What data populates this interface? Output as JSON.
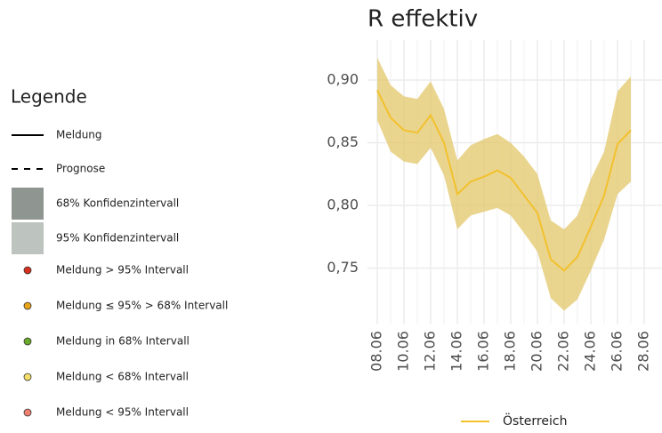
{
  "chart_data": {
    "type": "line",
    "title": "R effektiv",
    "categories": [
      "08.06",
      null,
      "10.06",
      null,
      "12.06",
      null,
      "14.06",
      null,
      "16.06",
      null,
      "18.06",
      null,
      "20.06",
      null,
      "22.06",
      null,
      "24.06",
      null,
      "26.06",
      null,
      "28.06"
    ],
    "series": [
      {
        "name": "Österreich",
        "color": "#f2c12e",
        "band_color": "#e3c76a",
        "values": [
          0.892,
          0.87,
          0.86,
          0.858,
          0.872,
          0.85,
          0.809,
          0.819,
          0.823,
          0.828,
          0.822,
          0.808,
          0.794,
          0.757,
          0.748,
          0.759,
          0.783,
          0.808,
          0.849,
          0.86,
          null
        ],
        "upper": [
          0.918,
          0.896,
          0.887,
          0.885,
          0.899,
          0.877,
          0.836,
          0.848,
          0.853,
          0.857,
          0.85,
          0.839,
          0.825,
          0.788,
          0.781,
          0.792,
          0.821,
          0.843,
          0.891,
          0.903,
          null
        ],
        "lower": [
          0.868,
          0.843,
          0.835,
          0.833,
          0.846,
          0.824,
          0.781,
          0.792,
          0.795,
          0.798,
          0.792,
          0.778,
          0.763,
          0.726,
          0.716,
          0.725,
          0.748,
          0.773,
          0.809,
          0.819,
          null
        ]
      }
    ],
    "ylim": [
      0.705,
      0.932
    ],
    "yticks": [
      {
        "value": 0.75,
        "label": "0,75"
      },
      {
        "value": 0.8,
        "label": "0,80"
      },
      {
        "value": 0.85,
        "label": "0,85"
      },
      {
        "value": 0.9,
        "label": "0,90"
      }
    ],
    "grid": true
  },
  "legend_panel": {
    "title": "Legende",
    "items": [
      {
        "label": "Meldung",
        "symbol": "line"
      },
      {
        "label": "Prognose",
        "symbol": "dash"
      },
      {
        "label": "68% Konfidenzintervall",
        "symbol": "square",
        "color": "#8f9691"
      },
      {
        "label": "95% Konfidenzintervall",
        "symbol": "square",
        "color": "#bdc3bf"
      },
      {
        "label": "Meldung > 95% Intervall",
        "symbol": "dot",
        "color": "#d7301f"
      },
      {
        "label": "Meldung ≤ 95% > 68% Intervall",
        "symbol": "dot",
        "color": "#e8a318"
      },
      {
        "label": "Meldung in 68% Intervall",
        "symbol": "dot",
        "color": "#6aab2b"
      },
      {
        "label": "Meldung < 68% Intervall",
        "symbol": "dot",
        "color": "#f5df6a"
      },
      {
        "label": "Meldung < 95% Intervall",
        "symbol": "dot",
        "color": "#f08070"
      }
    ]
  }
}
